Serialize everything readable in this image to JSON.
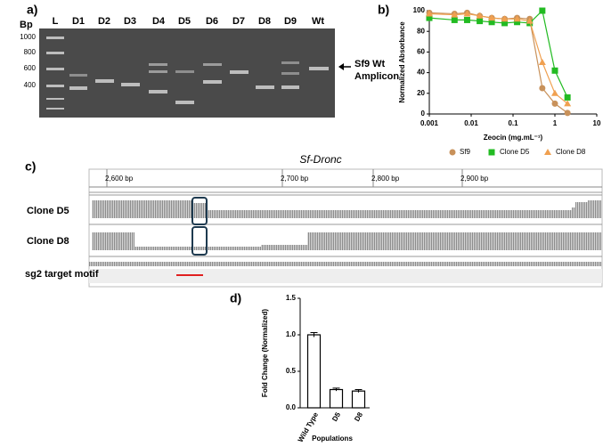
{
  "panels": [
    "a)",
    "b)",
    "c)",
    "d)"
  ],
  "gel": {
    "unit": "Bp",
    "lanes": [
      "L",
      "D1",
      "D2",
      "D3",
      "D4",
      "D5",
      "D6",
      "D7",
      "D8",
      "D9",
      "Wt"
    ],
    "ladder": [
      "1000",
      "800",
      "600",
      "400"
    ],
    "annotation": [
      "Sf9 Wt",
      "Amplicon"
    ]
  },
  "igv": {
    "title": "Sf-Dronc",
    "ruler": [
      "2,600 bp",
      "2,700 bp",
      "2,800 bp",
      "2,900 bp"
    ],
    "tracks": [
      "Clone D5",
      "Clone D8",
      "sg2 target motif"
    ]
  },
  "chart_data": [
    {
      "type": "scatter",
      "xlabel": "Zeocin  (mg.mL⁻¹)",
      "ylabel": "Normalized Absorbance",
      "xscale": "log",
      "xlim": [
        0.001,
        10
      ],
      "xticks": [
        0.001,
        0.01,
        0.1,
        1,
        10
      ],
      "ylim": [
        0,
        100
      ],
      "yticks": [
        0,
        20,
        40,
        60,
        80,
        100
      ],
      "legend": "below",
      "x": [
        0.001,
        0.004,
        0.008,
        0.016,
        0.031,
        0.063,
        0.125,
        0.25,
        0.5,
        1,
        2
      ],
      "series": [
        {
          "name": "Sf9",
          "color": "#c8915a",
          "marker": "circle",
          "values": [
            98,
            97,
            98,
            95,
            93,
            92,
            93,
            92,
            25,
            10,
            1
          ]
        },
        {
          "name": "Clone D5",
          "color": "#22bb22",
          "marker": "square",
          "values": [
            93,
            91,
            91,
            90,
            89,
            88,
            89,
            88,
            100,
            42,
            16
          ]
        },
        {
          "name": "Clone D8",
          "color": "#f0a050",
          "marker": "triangle",
          "values": [
            97,
            96,
            97,
            95,
            93,
            92,
            92,
            90,
            50,
            20,
            10
          ]
        }
      ]
    },
    {
      "type": "bar",
      "xlabel": "Populations",
      "ylabel": "Fold Change (Normalized)",
      "categories": [
        "Wild Type",
        "D5",
        "D8"
      ],
      "values": [
        1.0,
        0.25,
        0.23
      ],
      "errors": [
        0.03,
        0.02,
        0.02
      ],
      "color": "#ffffff",
      "ylim": [
        0,
        1.5
      ],
      "yticks": [
        {
          "value": 0,
          "label": "0.0"
        },
        {
          "value": 0.5,
          "label": "0.5"
        },
        {
          "value": 1,
          "label": "1.0"
        },
        {
          "value": 1.5,
          "label": "1.5"
        }
      ]
    }
  ]
}
